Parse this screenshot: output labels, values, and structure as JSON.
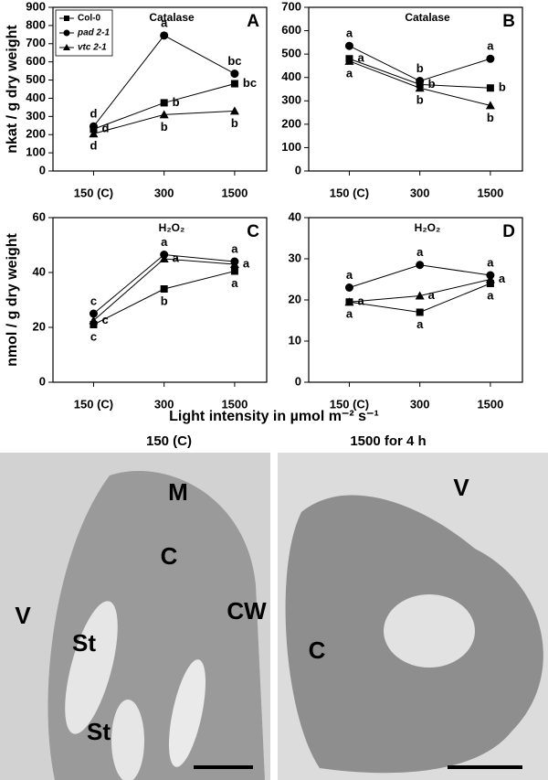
{
  "chart_data": [
    {
      "type": "line",
      "panel": "A",
      "title": "Catalase",
      "ylabel": "nkat / g dry weight",
      "legend": "upper left",
      "categories": [
        "150 (C)",
        "300",
        "1500"
      ],
      "ylim": [
        0,
        900
      ],
      "yticks": [
        0,
        100,
        200,
        300,
        400,
        500,
        600,
        700,
        800,
        900
      ],
      "series": [
        {
          "name": "Col-0",
          "color": "#000000",
          "marker": "square",
          "values": [
            230,
            375,
            480
          ],
          "letters": [
            "d",
            "b",
            "bc"
          ]
        },
        {
          "name": "pad 2-1",
          "color": "#000000",
          "marker": "circle",
          "values": [
            245,
            745,
            535
          ],
          "letters": [
            "d",
            "a",
            "bc"
          ]
        },
        {
          "name": "vtc 2-1",
          "color": "#000000",
          "marker": "triangle",
          "values": [
            205,
            310,
            330
          ],
          "letters": [
            "d",
            "b",
            "b"
          ]
        }
      ]
    },
    {
      "type": "line",
      "panel": "B",
      "title": "Catalase",
      "categories": [
        "150 (C)",
        "300",
        "1500"
      ],
      "ylim": [
        0,
        700
      ],
      "yticks": [
        0,
        100,
        200,
        300,
        400,
        500,
        600,
        700
      ],
      "series": [
        {
          "name": "Col-0",
          "color": "#000000",
          "marker": "square",
          "values": [
            480,
            370,
            355
          ],
          "letters": [
            "a",
            "b",
            "b"
          ]
        },
        {
          "name": "pad 2-1",
          "color": "#000000",
          "marker": "circle",
          "values": [
            535,
            385,
            480
          ],
          "letters": [
            "a",
            "b",
            "a"
          ]
        },
        {
          "name": "vtc 2-1",
          "color": "#000000",
          "marker": "triangle",
          "values": [
            470,
            355,
            280
          ],
          "letters": [
            "a",
            "b",
            "b"
          ]
        }
      ]
    },
    {
      "type": "line",
      "panel": "C",
      "title": "H₂O₂",
      "ylabel": "nmol / g dry weight",
      "categories": [
        "150 (C)",
        "300",
        "1500"
      ],
      "ylim": [
        0,
        60
      ],
      "yticks": [
        0,
        20,
        40,
        60
      ],
      "series": [
        {
          "name": "Col-0",
          "color": "#000000",
          "marker": "square",
          "values": [
            21,
            34,
            40.5
          ],
          "letters": [
            "c",
            "b",
            "a"
          ]
        },
        {
          "name": "pad 2-1",
          "color": "#000000",
          "marker": "circle",
          "values": [
            25,
            46.5,
            44
          ],
          "letters": [
            "c",
            "a",
            "a"
          ]
        },
        {
          "name": "vtc 2-1",
          "color": "#000000",
          "marker": "triangle",
          "values": [
            22.5,
            45,
            43
          ],
          "letters": [
            "c",
            "a",
            "a"
          ]
        }
      ]
    },
    {
      "type": "line",
      "panel": "D",
      "title": "H₂O₂",
      "categories": [
        "150 (C)",
        "300",
        "1500"
      ],
      "ylim": [
        0,
        40
      ],
      "yticks": [
        0,
        10,
        20,
        30,
        40
      ],
      "series": [
        {
          "name": "Col-0",
          "color": "#000000",
          "marker": "square",
          "values": [
            19.5,
            17,
            24
          ],
          "letters": [
            "a",
            "a",
            "a"
          ]
        },
        {
          "name": "pad 2-1",
          "color": "#000000",
          "marker": "circle",
          "values": [
            23,
            28.5,
            26
          ],
          "letters": [
            "a",
            "a",
            "a"
          ]
        },
        {
          "name": "vtc 2-1",
          "color": "#000000",
          "marker": "triangle",
          "values": [
            19.5,
            21,
            25
          ],
          "letters": [
            "a",
            "a",
            "a"
          ]
        }
      ]
    }
  ],
  "x_label": "Light intensity in µmol m⁻² s⁻¹",
  "micrographs": [
    {
      "title": "150 (C)",
      "labels": [
        "M",
        "C",
        "V",
        "St",
        "St",
        "CW"
      ]
    },
    {
      "title": "1500 for 4 h",
      "labels": [
        "V",
        "C"
      ]
    }
  ]
}
